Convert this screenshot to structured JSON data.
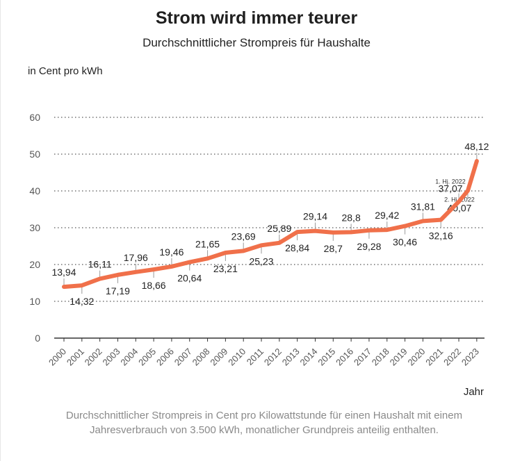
{
  "chart_data": {
    "type": "line",
    "title": "Strom wird immer teurer",
    "subtitle": "Durchschnittlicher Strompreis für Haushalte",
    "ylabel": "in Cent pro kWh",
    "xlabel": "Jahr",
    "note": "Durchschnittlicher Strompreis in Cent pro Kilowattstunde für einen Haushalt mit einem Jahresverbrauch von 3.500 kWh, monatlicher Grundpreis anteilig enthalten.",
    "ylim": [
      0,
      60
    ],
    "yticks": [
      "0",
      "10",
      "20",
      "30",
      "40",
      "50",
      "60"
    ],
    "grid": true,
    "color": "#f0704a",
    "categories": [
      "2000",
      "2001",
      "2002",
      "2003",
      "2004",
      "2005",
      "2006",
      "2007",
      "2008",
      "2009",
      "2010",
      "2011",
      "2012",
      "2013",
      "2014",
      "2015",
      "2016",
      "2017",
      "2018",
      "2019",
      "2020",
      "2021",
      "2022",
      "2023"
    ],
    "points": [
      {
        "x": 2000,
        "y": 13.94,
        "label": "13,94",
        "pos": "above"
      },
      {
        "x": 2001,
        "y": 14.32,
        "label": "14,32",
        "pos": "below"
      },
      {
        "x": 2002,
        "y": 16.11,
        "label": "16,11",
        "pos": "above"
      },
      {
        "x": 2003,
        "y": 17.19,
        "label": "17,19",
        "pos": "below"
      },
      {
        "x": 2004,
        "y": 17.96,
        "label": "17,96",
        "pos": "above"
      },
      {
        "x": 2005,
        "y": 18.66,
        "label": "18,66",
        "pos": "below"
      },
      {
        "x": 2006,
        "y": 19.46,
        "label": "19,46",
        "pos": "above"
      },
      {
        "x": 2007,
        "y": 20.64,
        "label": "20,64",
        "pos": "below"
      },
      {
        "x": 2008,
        "y": 21.65,
        "label": "21,65",
        "pos": "above"
      },
      {
        "x": 2009,
        "y": 23.21,
        "label": "23,21",
        "pos": "below"
      },
      {
        "x": 2010,
        "y": 23.69,
        "label": "23,69",
        "pos": "above"
      },
      {
        "x": 2011,
        "y": 25.23,
        "label": "25,23",
        "pos": "below"
      },
      {
        "x": 2012,
        "y": 25.89,
        "label": "25,89",
        "pos": "above"
      },
      {
        "x": 2013,
        "y": 28.84,
        "label": "28,84",
        "pos": "below"
      },
      {
        "x": 2014,
        "y": 29.14,
        "label": "29,14",
        "pos": "above"
      },
      {
        "x": 2015,
        "y": 28.7,
        "label": "28,7",
        "pos": "below"
      },
      {
        "x": 2016,
        "y": 28.8,
        "label": "28,8",
        "pos": "above"
      },
      {
        "x": 2017,
        "y": 29.28,
        "label": "29,28",
        "pos": "below"
      },
      {
        "x": 2018,
        "y": 29.42,
        "label": "29,42",
        "pos": "above"
      },
      {
        "x": 2019,
        "y": 30.46,
        "label": "30,46",
        "pos": "below"
      },
      {
        "x": 2020,
        "y": 31.81,
        "label": "31,81",
        "pos": "above"
      },
      {
        "x": 2021,
        "y": 32.16,
        "label": "32,16",
        "pos": "below"
      },
      {
        "x": 2022,
        "y": 37.07,
        "label": "37,07",
        "sublabel": "1. Hj. 2022",
        "pos": "above"
      },
      {
        "x": 2022.5,
        "y": 40.07,
        "label": "40,07",
        "sublabel": "2. Hj. 2022",
        "pos": "below"
      },
      {
        "x": 2023,
        "y": 48.12,
        "label": "48,12",
        "pos": "above"
      }
    ]
  }
}
